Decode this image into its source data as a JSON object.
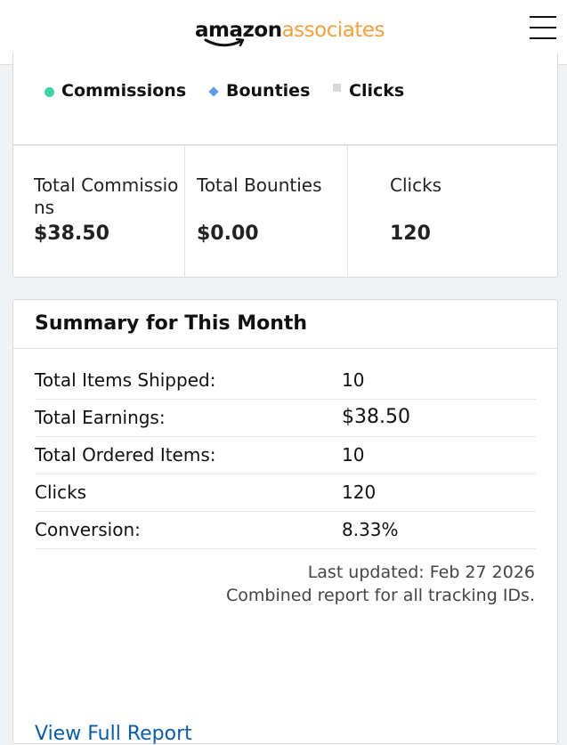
{
  "header": {
    "logo_primary": "amazon",
    "logo_secondary": "associates",
    "menu_icon": "hamburger-menu-icon"
  },
  "legend": [
    {
      "label": "Commissions",
      "marker": "dot",
      "color": "#3ed2a6"
    },
    {
      "label": "Bounties",
      "marker": "diamond",
      "color": "#5b9ce8"
    },
    {
      "label": "Clicks",
      "marker": "square",
      "color": "#d8d8d8"
    }
  ],
  "totals": [
    {
      "label": "Total Commissions",
      "value": "$38.50"
    },
    {
      "label": "Total Bounties",
      "value": "$0.00"
    },
    {
      "label": "Clicks",
      "value": "120"
    }
  ],
  "summary": {
    "title": "Summary for This Month",
    "rows": [
      {
        "label": "Total Items Shipped:",
        "value": "10"
      },
      {
        "label": "Total Earnings:",
        "value": "$38.50"
      },
      {
        "label": "Total Ordered Items:",
        "value": "10"
      },
      {
        "label": "Clicks",
        "value": "120"
      },
      {
        "label": "Conversion:",
        "value": "8.33%"
      }
    ],
    "last_updated": "Last updated: Feb 27 2026",
    "combined_note": "Combined report for all tracking IDs.",
    "full_report_link": "View Full Report"
  },
  "colors": {
    "brand_orange": "#f2a03d",
    "link_blue": "#0b5ca8",
    "commission_green": "#3ed2a6",
    "bounty_blue": "#5b9ce8"
  }
}
